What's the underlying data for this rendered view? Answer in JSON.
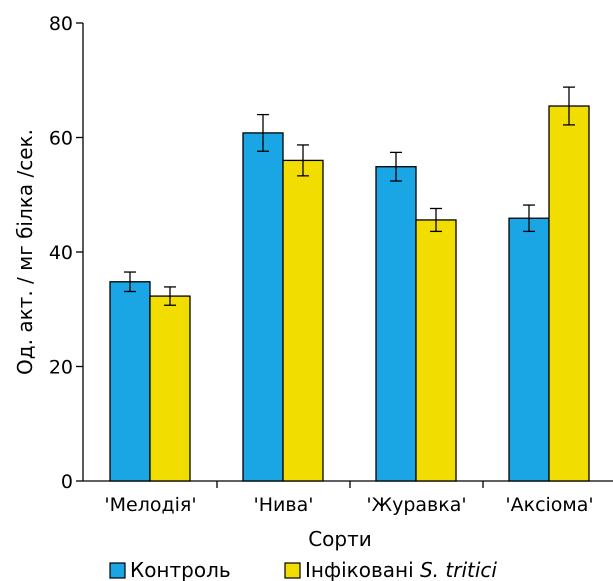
{
  "chart_data": {
    "type": "bar",
    "title": "",
    "xlabel": "Сорти",
    "ylabel": "Од. акт. / мг білка /сек.",
    "ylim": [
      0,
      80
    ],
    "yticks": [
      0,
      20,
      40,
      60,
      80
    ],
    "grid": false,
    "legend_position": "bottom",
    "categories": [
      "'Мелодія'",
      "'Нива'",
      "'Журавка'",
      "'Аксіома'"
    ],
    "series": [
      {
        "name": "Контроль",
        "color": "#1aa5e4",
        "values": [
          34.8,
          60.8,
          54.9,
          45.9
        ],
        "errors": [
          1.7,
          3.2,
          2.5,
          2.3
        ]
      },
      {
        "name_prefix": "Інфіковані ",
        "name_italic": "S. tritici",
        "name": "Інфіковані S. tritici",
        "color": "#f2dd00",
        "values": [
          32.3,
          56.0,
          45.6,
          65.5
        ],
        "errors": [
          1.6,
          2.7,
          2.0,
          3.3
        ]
      }
    ]
  }
}
